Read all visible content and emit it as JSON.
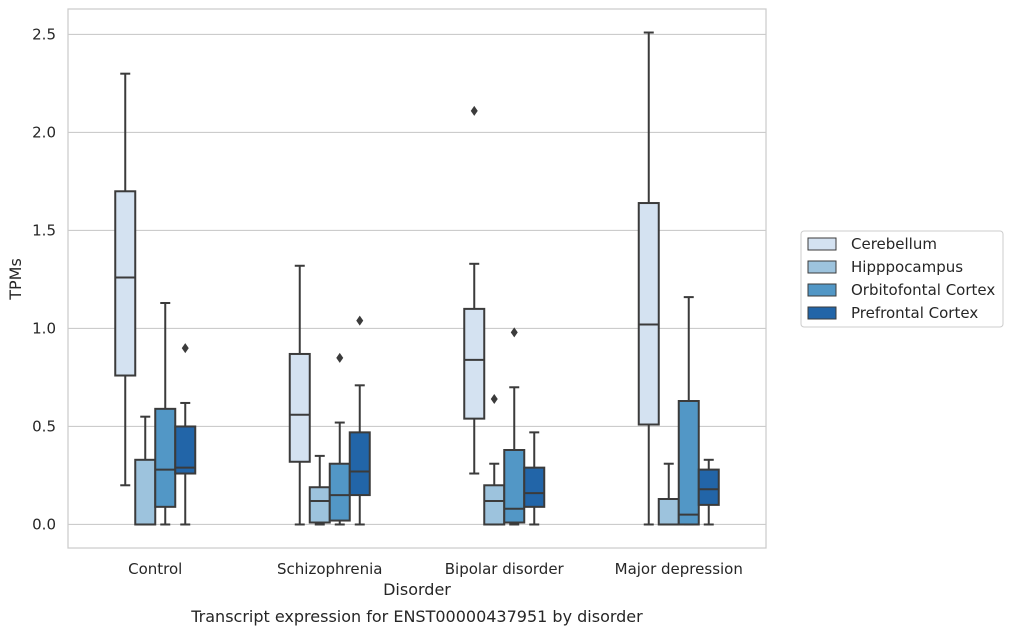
{
  "chart_data": {
    "type": "box",
    "title": "Transcript expression for ENST00000437951 by disorder",
    "xlabel": "Disorder",
    "ylabel": "TPMs",
    "categories": [
      "Control",
      "Schizophrenia",
      "Bipolar disorder",
      "Major depression"
    ],
    "ylim": [
      -0.12,
      2.63
    ],
    "yticks": [
      "0.0",
      "0.5",
      "1.0",
      "1.5",
      "2.0",
      "2.5"
    ],
    "grid": true,
    "legend_position": "right",
    "series": [
      {
        "name": "Cerebellum",
        "color": "#d4e2f1",
        "boxes": [
          {
            "whisker_low": 0.2,
            "q1": 0.76,
            "median": 1.26,
            "q3": 1.7,
            "whisker_high": 2.3,
            "outliers": []
          },
          {
            "whisker_low": 0.0,
            "q1": 0.32,
            "median": 0.56,
            "q3": 0.87,
            "whisker_high": 1.32,
            "outliers": []
          },
          {
            "whisker_low": 0.26,
            "q1": 0.54,
            "median": 0.84,
            "q3": 1.1,
            "whisker_high": 1.33,
            "outliers": [
              2.11
            ]
          },
          {
            "whisker_low": 0.0,
            "q1": 0.51,
            "median": 1.02,
            "q3": 1.64,
            "whisker_high": 2.51,
            "outliers": []
          }
        ]
      },
      {
        "name": "Hipppocampus",
        "color": "#9dc3dd",
        "boxes": [
          {
            "whisker_low": 0.0,
            "q1": 0.0,
            "median": 0.0,
            "q3": 0.33,
            "whisker_high": 0.55,
            "outliers": []
          },
          {
            "whisker_low": 0.0,
            "q1": 0.01,
            "median": 0.12,
            "q3": 0.19,
            "whisker_high": 0.35,
            "outliers": []
          },
          {
            "whisker_low": 0.0,
            "q1": 0.0,
            "median": 0.12,
            "q3": 0.2,
            "whisker_high": 0.31,
            "outliers": [
              0.64
            ]
          },
          {
            "whisker_low": 0.0,
            "q1": 0.0,
            "median": 0.0,
            "q3": 0.13,
            "whisker_high": 0.31,
            "outliers": []
          }
        ]
      },
      {
        "name": "Orbitofontal Cortex",
        "color": "#5297c6",
        "boxes": [
          {
            "whisker_low": 0.0,
            "q1": 0.09,
            "median": 0.28,
            "q3": 0.59,
            "whisker_high": 1.13,
            "outliers": []
          },
          {
            "whisker_low": 0.0,
            "q1": 0.02,
            "median": 0.15,
            "q3": 0.31,
            "whisker_high": 0.52,
            "outliers": [
              0.85
            ]
          },
          {
            "whisker_low": 0.0,
            "q1": 0.01,
            "median": 0.08,
            "q3": 0.38,
            "whisker_high": 0.7,
            "outliers": [
              0.98
            ]
          },
          {
            "whisker_low": 0.0,
            "q1": 0.0,
            "median": 0.05,
            "q3": 0.63,
            "whisker_high": 1.16,
            "outliers": []
          }
        ]
      },
      {
        "name": "Prefrontal Cortex",
        "color": "#2265a8",
        "boxes": [
          {
            "whisker_low": 0.0,
            "q1": 0.26,
            "median": 0.29,
            "q3": 0.5,
            "whisker_high": 0.62,
            "outliers": [
              0.9
            ]
          },
          {
            "whisker_low": 0.0,
            "q1": 0.15,
            "median": 0.27,
            "q3": 0.47,
            "whisker_high": 0.71,
            "outliers": [
              1.04
            ]
          },
          {
            "whisker_low": 0.0,
            "q1": 0.09,
            "median": 0.16,
            "q3": 0.29,
            "whisker_high": 0.47,
            "outliers": []
          },
          {
            "whisker_low": 0.0,
            "q1": 0.1,
            "median": 0.18,
            "q3": 0.28,
            "whisker_high": 0.33,
            "outliers": []
          }
        ]
      }
    ]
  }
}
